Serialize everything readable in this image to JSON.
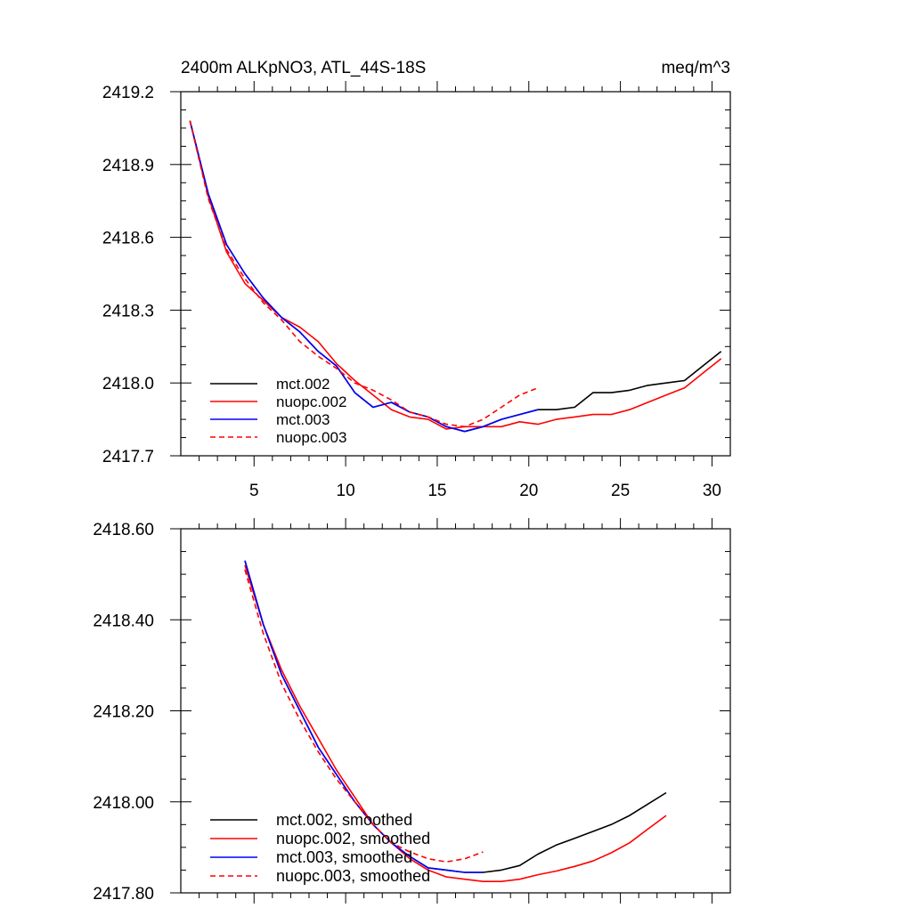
{
  "chart_data": [
    {
      "type": "line",
      "title_left": "2400m ALKpNO3, ATL_44S-18S",
      "title_right": "meq/m^3",
      "xlim": [
        1,
        31
      ],
      "ylim": [
        2417.7,
        2419.2
      ],
      "yticks": [
        "2419.2",
        "2418.9",
        "2418.6",
        "2418.3",
        "2418.0",
        "2417.7"
      ],
      "ytick_values": [
        2419.2,
        2418.9,
        2418.6,
        2418.3,
        2418.0,
        2417.7
      ],
      "xticks": [
        "5",
        "10",
        "15",
        "20",
        "25",
        "30"
      ],
      "xtick_values": [
        5,
        10,
        15,
        20,
        25,
        30
      ],
      "legend_position": "bottom-left",
      "series": [
        {
          "name": "mct.002",
          "color": "#000000",
          "dash": "solid",
          "x": [
            1.5,
            2.5,
            3.5,
            4.5,
            5.5,
            6.5,
            7.5,
            8.5,
            9.5,
            10.5,
            11.5,
            12.5,
            13.5,
            14.5,
            15.5,
            16.5,
            17.5,
            18.5,
            19.5,
            20.5,
            21.5,
            22.5,
            23.5,
            24.5,
            25.5,
            26.5,
            27.5,
            28.5,
            29.5,
            30.5
          ],
          "y": [
            2419.08,
            2418.78,
            2418.57,
            2418.45,
            2418.35,
            2418.27,
            2418.21,
            2418.13,
            2418.07,
            2417.96,
            2417.9,
            2417.92,
            2417.88,
            2417.86,
            2417.82,
            2417.8,
            2417.82,
            2417.85,
            2417.87,
            2417.89,
            2417.89,
            2417.9,
            2417.96,
            2417.96,
            2417.97,
            2417.99,
            2418.0,
            2418.01,
            2418.07,
            2418.13
          ]
        },
        {
          "name": "nuopc.002",
          "color": "#ff0000",
          "dash": "solid",
          "x": [
            1.5,
            2.5,
            3.5,
            4.5,
            5.5,
            6.5,
            7.5,
            8.5,
            9.5,
            10.5,
            11.5,
            12.5,
            13.5,
            14.5,
            15.5,
            16.5,
            17.5,
            18.5,
            19.5,
            20.5,
            21.5,
            22.5,
            23.5,
            24.5,
            25.5,
            26.5,
            27.5,
            28.5,
            29.5,
            30.5
          ],
          "y": [
            2419.08,
            2418.77,
            2418.54,
            2418.41,
            2418.34,
            2418.27,
            2418.23,
            2418.17,
            2418.08,
            2418.01,
            2417.95,
            2417.89,
            2417.86,
            2417.85,
            2417.81,
            2417.82,
            2417.82,
            2417.82,
            2417.84,
            2417.83,
            2417.85,
            2417.86,
            2417.87,
            2417.87,
            2417.89,
            2417.92,
            2417.95,
            2417.98,
            2418.04,
            2418.1
          ]
        },
        {
          "name": "mct.003",
          "color": "#0000ff",
          "dash": "solid",
          "x": [
            1.5,
            2.5,
            3.5,
            4.5,
            5.5,
            6.5,
            7.5,
            8.5,
            9.5,
            10.5,
            11.5,
            12.5,
            13.5,
            14.5,
            15.5,
            16.5,
            17.5,
            18.5,
            19.5,
            20.5
          ],
          "y": [
            2419.08,
            2418.78,
            2418.57,
            2418.45,
            2418.35,
            2418.27,
            2418.21,
            2418.13,
            2418.07,
            2417.96,
            2417.9,
            2417.92,
            2417.88,
            2417.86,
            2417.82,
            2417.8,
            2417.82,
            2417.85,
            2417.87,
            2417.89
          ]
        },
        {
          "name": "nuopc.003",
          "color": "#ff0000",
          "dash": "dashed",
          "x": [
            1.5,
            2.5,
            3.5,
            4.5,
            5.5,
            6.5,
            7.5,
            8.5,
            9.5,
            10.5,
            11.5,
            12.5,
            13.5,
            14.5,
            15.5,
            16.5,
            17.5,
            18.5,
            19.5,
            20.5
          ],
          "y": [
            2419.08,
            2418.76,
            2418.55,
            2418.43,
            2418.33,
            2418.26,
            2418.17,
            2418.11,
            2418.06,
            2418.0,
            2417.97,
            2417.93,
            2417.88,
            2417.86,
            2417.83,
            2417.82,
            2417.85,
            2417.9,
            2417.95,
            2417.98
          ]
        }
      ]
    },
    {
      "type": "line",
      "xlim": [
        1,
        31
      ],
      "ylim": [
        2417.8,
        2418.6
      ],
      "yticks": [
        "2418.60",
        "2418.40",
        "2418.20",
        "2418.00",
        "2417.80"
      ],
      "ytick_values": [
        2418.6,
        2418.4,
        2418.2,
        2418.0,
        2417.8
      ],
      "xtick_values": [
        5,
        10,
        15,
        20,
        25,
        30
      ],
      "legend_position": "bottom-left",
      "series": [
        {
          "name": "mct.002, smoothed",
          "color": "#000000",
          "dash": "solid",
          "x": [
            4.5,
            5.5,
            6.5,
            7.5,
            8.5,
            9.5,
            10.5,
            11.5,
            12.5,
            13.5,
            14.5,
            15.5,
            16.5,
            17.5,
            18.5,
            19.5,
            20.5,
            21.5,
            22.5,
            23.5,
            24.5,
            25.5,
            26.5,
            27.5
          ],
          "y": [
            2418.53,
            2418.39,
            2418.28,
            2418.2,
            2418.12,
            2418.06,
            2418.0,
            2417.95,
            2417.91,
            2417.88,
            2417.855,
            2417.85,
            2417.845,
            2417.845,
            2417.85,
            2417.86,
            2417.885,
            2417.905,
            2417.92,
            2417.935,
            2417.95,
            2417.97,
            2417.995,
            2418.02
          ]
        },
        {
          "name": "nuopc.002, smoothed",
          "color": "#ff0000",
          "dash": "solid",
          "x": [
            4.5,
            5.5,
            6.5,
            7.5,
            8.5,
            9.5,
            10.5,
            11.5,
            12.5,
            13.5,
            14.5,
            15.5,
            16.5,
            17.5,
            18.5,
            19.5,
            20.5,
            21.5,
            22.5,
            23.5,
            24.5,
            25.5,
            26.5,
            27.5
          ],
          "y": [
            2418.52,
            2418.39,
            2418.29,
            2418.21,
            2418.14,
            2418.07,
            2418.01,
            2417.95,
            2417.91,
            2417.875,
            2417.85,
            2417.835,
            2417.83,
            2417.825,
            2417.825,
            2417.83,
            2417.84,
            2417.848,
            2417.858,
            2417.87,
            2417.888,
            2417.91,
            2417.94,
            2417.97
          ]
        },
        {
          "name": "mct.003, smoothed",
          "color": "#0000ff",
          "dash": "solid",
          "x": [
            4.5,
            5.5,
            6.5,
            7.5,
            8.5,
            9.5,
            10.5,
            11.5,
            12.5,
            13.5,
            14.5,
            15.5,
            16.5,
            17.5
          ],
          "y": [
            2418.53,
            2418.39,
            2418.28,
            2418.2,
            2418.12,
            2418.06,
            2418.0,
            2417.95,
            2417.91,
            2417.88,
            2417.855,
            2417.85,
            2417.845,
            2417.845
          ]
        },
        {
          "name": "nuopc.003, smoothed",
          "color": "#ff0000",
          "dash": "dashed",
          "x": [
            4.5,
            5.5,
            6.5,
            7.5,
            8.5,
            9.5,
            10.5,
            11.5,
            12.5,
            13.5,
            14.5,
            15.5,
            16.5,
            17.5
          ],
          "y": [
            2418.51,
            2418.37,
            2418.26,
            2418.18,
            2418.11,
            2418.05,
            2418.0,
            2417.95,
            2417.91,
            2417.89,
            2417.875,
            2417.868,
            2417.875,
            2417.89
          ]
        }
      ]
    }
  ]
}
